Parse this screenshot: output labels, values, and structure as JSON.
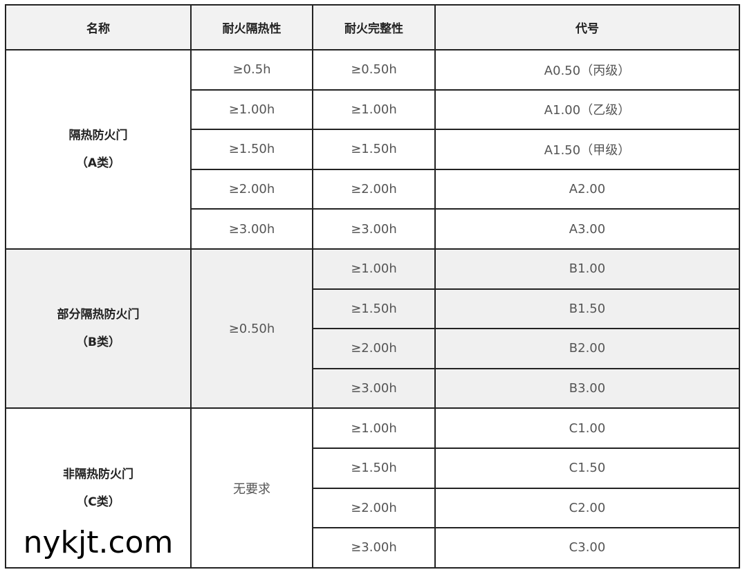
{
  "headers": [
    "名称",
    "耐火隔热性",
    "耐火完整性",
    "代号"
  ],
  "groups": [
    {
      "name": "隔热防火门",
      "class": "（A类）",
      "rows": [
        {
          "insulation": "≥0.5h",
          "integrity": "≥0.50h",
          "code": "A0.50（丙级）"
        },
        {
          "insulation": "≥1.00h",
          "integrity": "≥1.00h",
          "code": "A1.00（乙级）"
        },
        {
          "insulation": "≥1.50h",
          "integrity": "≥1.50h",
          "code": "A1.50（甲级）"
        },
        {
          "insulation": "≥2.00h",
          "integrity": "≥2.00h",
          "code": "A2.00"
        },
        {
          "insulation": "≥3.00h",
          "integrity": "≥3.00h",
          "code": "A3.00"
        }
      ]
    },
    {
      "name": "部分隔热防火门",
      "class": "（B类）",
      "insulation": "≥0.50h",
      "rows": [
        {
          "integrity": "≥1.00h",
          "code": "B1.00"
        },
        {
          "integrity": "≥1.50h",
          "code": "B1.50"
        },
        {
          "integrity": "≥2.00h",
          "code": "B2.00"
        },
        {
          "integrity": "≥3.00h",
          "code": "B3.00"
        }
      ]
    },
    {
      "name": "非隔热防火门",
      "class": "（C类）",
      "insulation": "无要求",
      "rows": [
        {
          "integrity": "≥1.00h",
          "code": "C1.00"
        },
        {
          "integrity": "≥1.50h",
          "code": "C1.50"
        },
        {
          "integrity": "≥2.00h",
          "code": "C2.00"
        },
        {
          "integrity": "≥3.00h",
          "code": "C3.00"
        }
      ]
    }
  ],
  "watermark": "nykjt.com"
}
